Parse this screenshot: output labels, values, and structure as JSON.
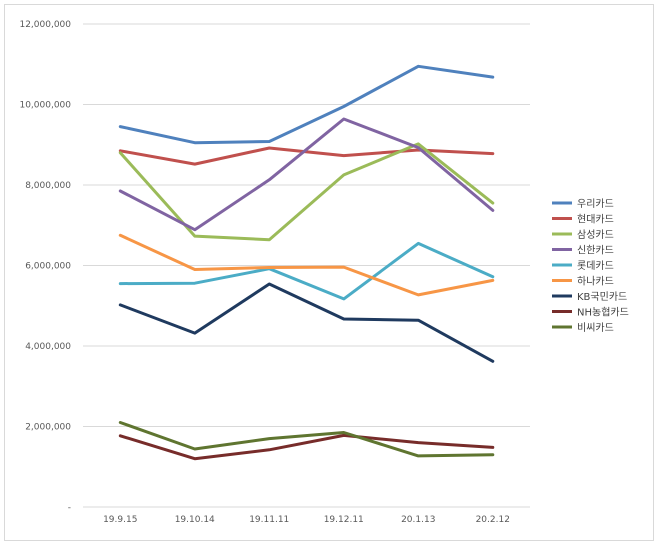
{
  "chart_data": {
    "type": "line",
    "title": "",
    "xlabel": "",
    "ylabel": "",
    "categories": [
      "19.9.15",
      "19.10.14",
      "19.11.11",
      "19.12.11",
      "20.1.13",
      "20.2.12"
    ],
    "ylim": [
      0,
      12000000
    ],
    "yticks": [
      {
        "value": 0,
        "label": "-"
      },
      {
        "value": 2000000,
        "label": "2,000,000"
      },
      {
        "value": 4000000,
        "label": "4,000,000"
      },
      {
        "value": 6000000,
        "label": "6,000,000"
      },
      {
        "value": 8000000,
        "label": "8,000,000"
      },
      {
        "value": 10000000,
        "label": "10,000,000"
      },
      {
        "value": 12000000,
        "label": "12,000,000"
      }
    ],
    "grid": true,
    "legend_position": "right",
    "series": [
      {
        "name": "우리카드",
        "color": "#4F81BD",
        "values": [
          9450000,
          9050000,
          9080000,
          9950000,
          10950000,
          10680000
        ]
      },
      {
        "name": "현대카드",
        "color": "#C0504D",
        "values": [
          8850000,
          8520000,
          8920000,
          8730000,
          8870000,
          8780000
        ]
      },
      {
        "name": "삼성카드",
        "color": "#9BBB59",
        "values": [
          8800000,
          6730000,
          6640000,
          8250000,
          9020000,
          7550000
        ]
      },
      {
        "name": "신한카드",
        "color": "#8064A2",
        "values": [
          7850000,
          6890000,
          8130000,
          9640000,
          8930000,
          7370000
        ]
      },
      {
        "name": "롯데카드",
        "color": "#4BACC6",
        "values": [
          5550000,
          5560000,
          5920000,
          5170000,
          6550000,
          5720000
        ]
      },
      {
        "name": "하나카드",
        "color": "#F79646",
        "values": [
          6750000,
          5900000,
          5950000,
          5960000,
          5270000,
          5630000
        ]
      },
      {
        "name": "KB국민카드",
        "color": "#1F3A5F",
        "values": [
          5020000,
          4320000,
          5540000,
          4670000,
          4640000,
          3620000
        ]
      },
      {
        "name": "NH농협카드",
        "color": "#772C2A",
        "values": [
          1770000,
          1200000,
          1420000,
          1780000,
          1600000,
          1480000
        ]
      },
      {
        "name": "비씨카드",
        "color": "#5F7530",
        "values": [
          2100000,
          1440000,
          1700000,
          1850000,
          1270000,
          1300000
        ]
      }
    ]
  }
}
